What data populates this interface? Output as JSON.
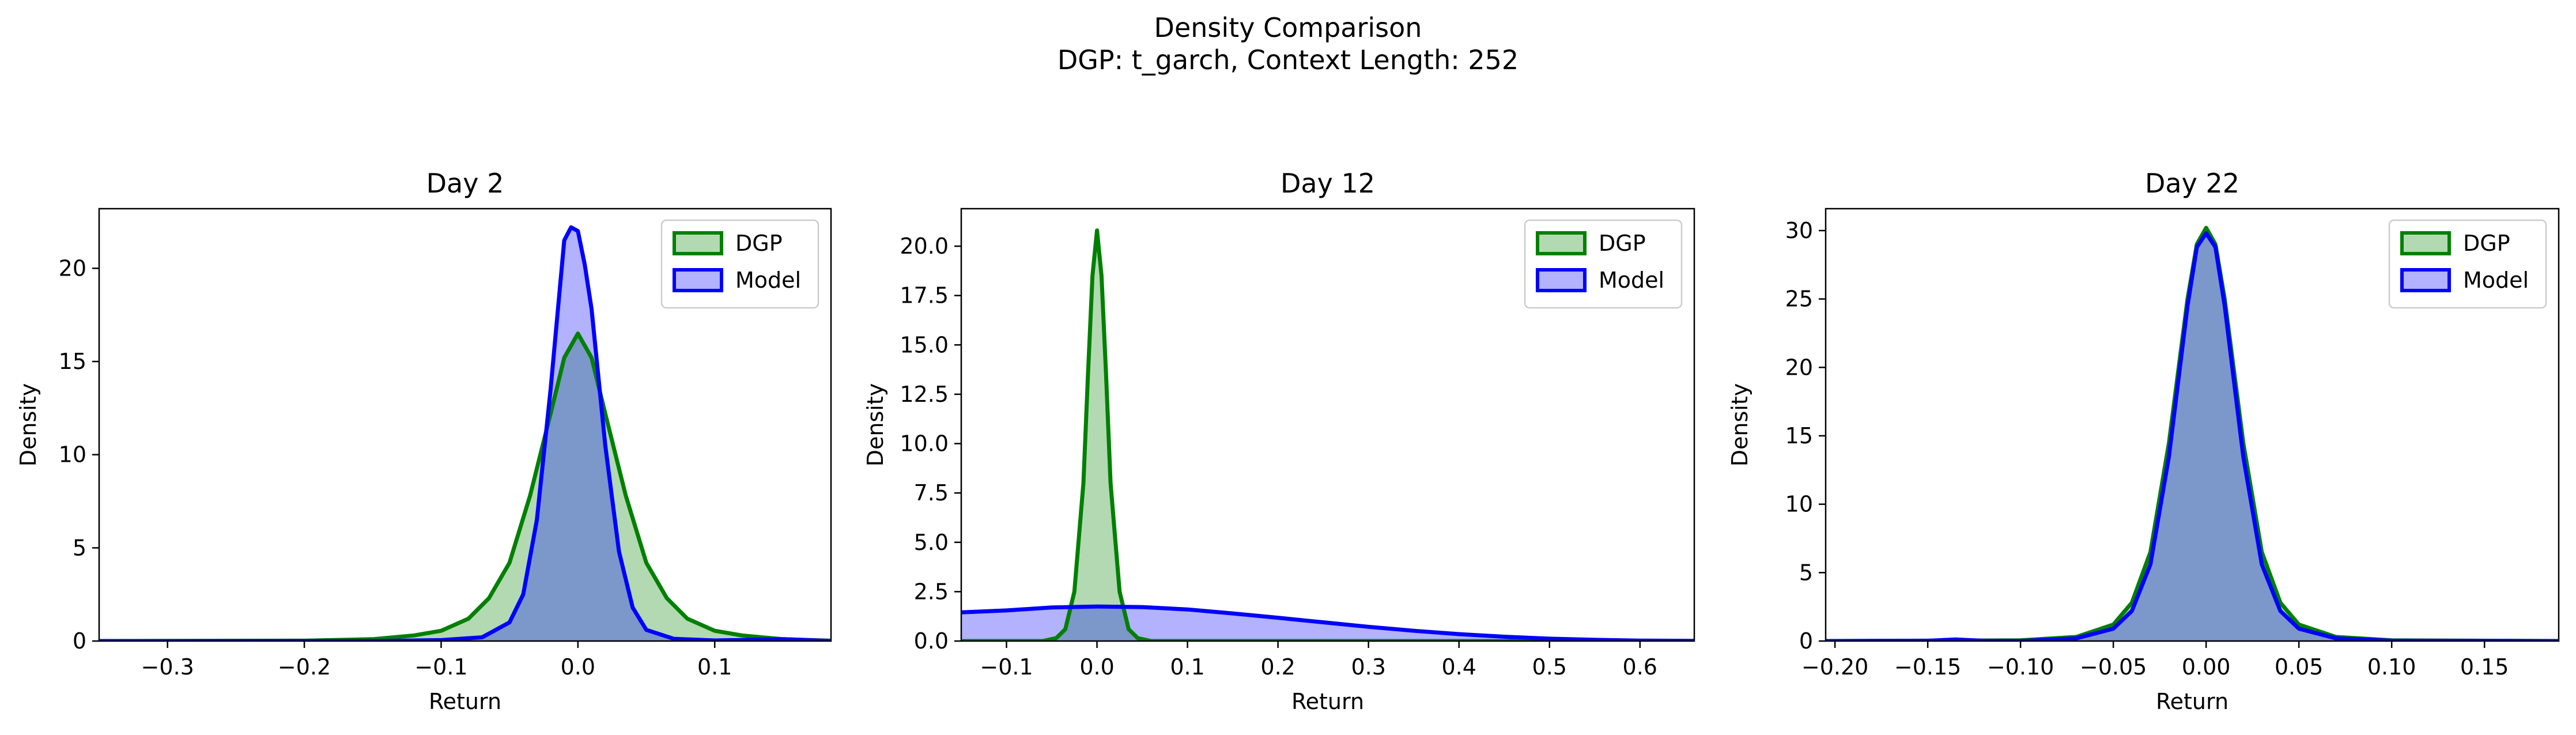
{
  "figure": {
    "title_line1": "Density Comparison",
    "title_line2": "DGP: t_garch, Context Length: 252"
  },
  "colors": {
    "dgp": "#008000",
    "model": "#0000ff"
  },
  "chart_data": [
    {
      "type": "area",
      "title": "Day 2",
      "xlabel": "Return",
      "ylabel": "Density",
      "xlim": [
        -0.35,
        0.185
      ],
      "ylim": [
        0,
        23.2
      ],
      "xticks": [
        -0.3,
        -0.2,
        -0.1,
        0.0,
        0.1
      ],
      "xtick_labels": [
        "−0.3",
        "−0.2",
        "−0.1",
        "0.0",
        "0.1"
      ],
      "yticks": [
        0,
        5,
        10,
        15,
        20
      ],
      "ytick_labels": [
        "0",
        "5",
        "10",
        "15",
        "20"
      ],
      "legend": "top-right",
      "series": [
        {
          "name": "DGP",
          "color": "#008000",
          "x": [
            -0.35,
            -0.2,
            -0.15,
            -0.12,
            -0.1,
            -0.08,
            -0.065,
            -0.05,
            -0.035,
            -0.02,
            -0.01,
            0.0,
            0.01,
            0.02,
            0.035,
            0.05,
            0.065,
            0.08,
            0.1,
            0.12,
            0.15,
            0.185
          ],
          "y": [
            0.0,
            0.02,
            0.1,
            0.3,
            0.55,
            1.2,
            2.3,
            4.2,
            7.8,
            12.2,
            15.2,
            16.5,
            15.2,
            12.2,
            7.8,
            4.2,
            2.3,
            1.2,
            0.55,
            0.3,
            0.1,
            0.02
          ]
        },
        {
          "name": "Model",
          "color": "#0000ff",
          "x": [
            -0.35,
            -0.15,
            -0.1,
            -0.07,
            -0.05,
            -0.04,
            -0.03,
            -0.02,
            -0.01,
            -0.005,
            0.0,
            0.005,
            0.01,
            0.02,
            0.03,
            0.04,
            0.05,
            0.07,
            0.1,
            0.15,
            0.185
          ],
          "y": [
            0.0,
            0.0,
            0.05,
            0.2,
            1.0,
            2.5,
            6.5,
            13.5,
            21.5,
            22.2,
            22.0,
            20.2,
            17.8,
            10.5,
            4.8,
            1.8,
            0.6,
            0.12,
            0.03,
            0.1,
            0.0
          ]
        }
      ]
    },
    {
      "type": "area",
      "title": "Day 12",
      "xlabel": "Return",
      "ylabel": "Density",
      "xlim": [
        -0.15,
        0.66
      ],
      "ylim": [
        0,
        21.9
      ],
      "xticks": [
        -0.1,
        0.0,
        0.1,
        0.2,
        0.3,
        0.4,
        0.5,
        0.6
      ],
      "xtick_labels": [
        "−0.1",
        "0.0",
        "0.1",
        "0.2",
        "0.3",
        "0.4",
        "0.5",
        "0.6"
      ],
      "yticks": [
        0,
        2.5,
        5,
        7.5,
        10,
        12.5,
        15,
        17.5,
        20
      ],
      "ytick_labels": [
        "0.0",
        "2.5",
        "5.0",
        "7.5",
        "10.0",
        "12.5",
        "15.0",
        "17.5",
        "20.0"
      ],
      "legend": "top-right",
      "series": [
        {
          "name": "DGP",
          "color": "#008000",
          "x": [
            -0.15,
            -0.06,
            -0.045,
            -0.035,
            -0.025,
            -0.015,
            -0.01,
            -0.005,
            0.0,
            0.005,
            0.01,
            0.015,
            0.025,
            0.035,
            0.045,
            0.06,
            0.66
          ],
          "y": [
            0.0,
            0.0,
            0.15,
            0.6,
            2.5,
            8.0,
            13.5,
            18.5,
            20.8,
            18.5,
            13.5,
            8.0,
            2.5,
            0.6,
            0.15,
            0.0,
            0.0
          ]
        },
        {
          "name": "Model",
          "color": "#0000ff",
          "x": [
            -0.15,
            -0.1,
            -0.05,
            0.0,
            0.05,
            0.1,
            0.15,
            0.2,
            0.25,
            0.3,
            0.35,
            0.4,
            0.45,
            0.5,
            0.55,
            0.6,
            0.66
          ],
          "y": [
            1.45,
            1.55,
            1.7,
            1.75,
            1.72,
            1.6,
            1.4,
            1.18,
            0.95,
            0.72,
            0.52,
            0.35,
            0.22,
            0.12,
            0.06,
            0.02,
            0.01
          ]
        }
      ]
    },
    {
      "type": "area",
      "title": "Day 22",
      "xlabel": "Return",
      "ylabel": "Density",
      "xlim": [
        -0.205,
        0.19
      ],
      "ylim": [
        0,
        31.6
      ],
      "xticks": [
        -0.2,
        -0.15,
        -0.1,
        -0.05,
        0.0,
        0.05,
        0.1,
        0.15
      ],
      "xtick_labels": [
        "−0.20",
        "−0.15",
        "−0.10",
        "−0.05",
        "0.00",
        "0.05",
        "0.10",
        "0.15"
      ],
      "yticks": [
        0,
        5,
        10,
        15,
        20,
        25,
        30
      ],
      "ytick_labels": [
        "0",
        "5",
        "10",
        "15",
        "20",
        "25",
        "30"
      ],
      "legend": "top-right",
      "series": [
        {
          "name": "DGP",
          "color": "#008000",
          "x": [
            -0.205,
            -0.1,
            -0.07,
            -0.05,
            -0.04,
            -0.03,
            -0.02,
            -0.01,
            -0.005,
            0.0,
            0.005,
            0.01,
            0.02,
            0.03,
            0.04,
            0.05,
            0.07,
            0.1,
            0.19
          ],
          "y": [
            0.0,
            0.05,
            0.3,
            1.2,
            2.8,
            6.5,
            14.5,
            25.0,
            29.0,
            30.2,
            29.0,
            25.0,
            14.5,
            6.5,
            2.8,
            1.2,
            0.3,
            0.05,
            0.0
          ]
        },
        {
          "name": "Model",
          "color": "#0000ff",
          "x": [
            -0.205,
            -0.15,
            -0.135,
            -0.12,
            -0.1,
            -0.07,
            -0.05,
            -0.04,
            -0.03,
            -0.02,
            -0.01,
            -0.005,
            0.0,
            0.005,
            0.01,
            0.02,
            0.03,
            0.04,
            0.05,
            0.07,
            0.1,
            0.19
          ],
          "y": [
            0.0,
            0.02,
            0.12,
            0.02,
            0.0,
            0.2,
            0.9,
            2.2,
            5.6,
            13.5,
            24.5,
            28.8,
            29.8,
            28.8,
            24.5,
            13.5,
            5.6,
            2.2,
            0.9,
            0.2,
            0.02,
            0.0
          ]
        }
      ]
    }
  ]
}
